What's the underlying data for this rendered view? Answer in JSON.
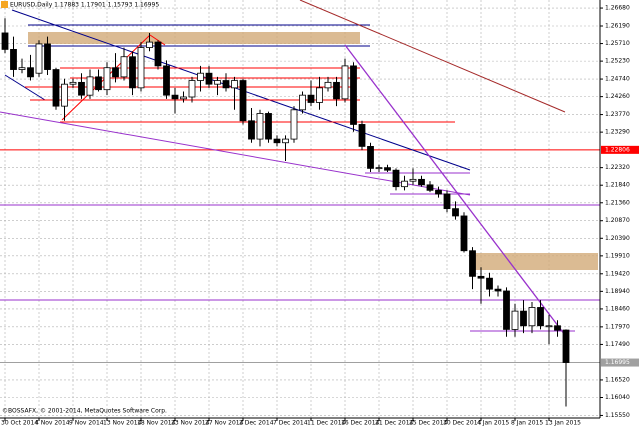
{
  "chart_data": {
    "type": "candlestick",
    "title": "EURUSD,Daily  1.17883 1.17901 1.15793 1.16995",
    "footer": "©BOSSAFX, © 2001-2014, MetaQuotes Software Corp.",
    "categories": [
      "30 Oct 2014",
      null,
      null,
      null,
      "4 Nov 2014",
      null,
      null,
      null,
      "9 Nov 2014",
      null,
      null,
      null,
      "13 Nov 2014",
      null,
      null,
      null,
      "18 Nov 2014",
      null,
      null,
      null,
      "23 Nov 2014",
      null,
      null,
      null,
      "27 Nov 2014",
      null,
      null,
      null,
      "2 Dec 2014",
      null,
      null,
      null,
      "7 Dec 2014",
      null,
      null,
      null,
      "11 Dec 2014",
      null,
      null,
      null,
      "16 Dec 2014",
      null,
      null,
      null,
      "21 Dec 2014",
      null,
      null,
      null,
      "25 Dec 2014",
      null,
      null,
      null,
      "30 Dec 2014",
      null,
      null,
      null,
      "4 Jan 2015",
      null,
      null,
      null,
      "8 Jan 2015",
      null,
      null,
      null,
      "13 Jan 2015",
      null,
      null
    ],
    "open": [
      1.26,
      1.2555,
      1.25,
      1.2505,
      1.249,
      1.257,
      1.25,
      1.24,
      1.246,
      1.2465,
      1.243,
      1.248,
      1.2445,
      1.2505,
      1.248,
      1.2535,
      1.245,
      1.256,
      1.2575,
      1.251,
      1.243,
      1.242,
      1.2425,
      1.247,
      1.249,
      1.246,
      1.247,
      1.245,
      1.247,
      1.236,
      1.231,
      1.238,
      1.231,
      1.23,
      1.231,
      1.239,
      1.243,
      1.241,
      1.245,
      1.2465,
      1.242,
      1.251,
      1.235,
      1.229,
      1.223,
      1.2232,
      1.2225,
      1.218,
      1.2195,
      1.22,
      1.2185,
      1.217,
      1.216,
      1.212,
      1.21,
      1.2005,
      1.1935,
      1.193,
      1.19,
      1.1895,
      1.179,
      1.184,
      1.18,
      1.185,
      1.18,
      1.18,
      1.17883
    ],
    "high": [
      1.264,
      1.259,
      1.253,
      1.254,
      1.258,
      1.259,
      1.2505,
      1.2475,
      1.2475,
      1.249,
      1.25,
      1.25,
      1.252,
      1.2545,
      1.256,
      1.255,
      1.2575,
      1.26,
      1.258,
      1.2525,
      1.245,
      1.244,
      1.248,
      1.251,
      1.251,
      1.248,
      1.249,
      1.248,
      1.2475,
      1.2395,
      1.239,
      1.2385,
      1.232,
      1.232,
      1.24,
      1.244,
      1.247,
      1.248,
      1.248,
      1.248,
      1.253,
      1.252,
      1.236,
      1.23,
      1.224,
      1.224,
      1.223,
      1.221,
      1.223,
      1.221,
      1.2195,
      1.218,
      1.217,
      1.214,
      1.211,
      1.2015,
      1.196,
      1.1945,
      1.191,
      1.1905,
      1.186,
      1.187,
      1.1865,
      1.187,
      1.183,
      1.1815,
      1.17901
    ],
    "low": [
      1.2545,
      1.248,
      1.249,
      1.247,
      1.248,
      1.2485,
      1.239,
      1.236,
      1.245,
      1.242,
      1.242,
      1.244,
      1.243,
      1.2465,
      1.247,
      1.243,
      1.244,
      1.255,
      1.25,
      1.242,
      1.238,
      1.241,
      1.241,
      1.244,
      1.245,
      1.243,
      1.244,
      1.239,
      1.235,
      1.23,
      1.229,
      1.23,
      1.229,
      1.225,
      1.23,
      1.238,
      1.24,
      1.239,
      1.244,
      1.24,
      1.241,
      1.233,
      1.228,
      1.222,
      1.222,
      1.222,
      1.217,
      1.217,
      1.2185,
      1.218,
      1.2165,
      1.215,
      1.211,
      1.209,
      1.2,
      1.19,
      1.186,
      1.188,
      1.188,
      1.177,
      1.177,
      1.178,
      1.178,
      1.179,
      1.175,
      1.177,
      1.15793
    ],
    "close": [
      1.2555,
      1.25,
      1.2505,
      1.248,
      1.257,
      1.25,
      1.24,
      1.246,
      1.2465,
      1.243,
      1.248,
      1.2445,
      1.2505,
      1.248,
      1.2535,
      1.245,
      1.256,
      1.2575,
      1.251,
      1.243,
      1.242,
      1.2425,
      1.247,
      1.249,
      1.246,
      1.247,
      1.245,
      1.247,
      1.236,
      1.231,
      1.238,
      1.231,
      1.23,
      1.231,
      1.239,
      1.243,
      1.241,
      1.245,
      1.2465,
      1.242,
      1.251,
      1.235,
      1.229,
      1.223,
      1.2232,
      1.2225,
      1.218,
      1.2195,
      1.22,
      1.2185,
      1.217,
      1.216,
      1.212,
      1.21,
      1.2005,
      1.1935,
      1.193,
      1.19,
      1.1895,
      1.179,
      1.184,
      1.18,
      1.185,
      1.18,
      1.18,
      1.1788,
      1.16995
    ],
    "up_color": "#ffffff",
    "down_color": "#000000",
    "ylim": [
      1.1548,
      1.269
    ],
    "yticks": [
      {
        "value": 1.2668,
        "label": "1.26680"
      },
      {
        "value": 1.2619,
        "label": "1.26190"
      },
      {
        "value": 1.2571,
        "label": "1.25710"
      },
      {
        "value": 1.2523,
        "label": "1.25230"
      },
      {
        "value": 1.2474,
        "label": "1.24740"
      },
      {
        "value": 1.2426,
        "label": "1.24260"
      },
      {
        "value": 1.2377,
        "label": "1.23770"
      },
      {
        "value": 1.2329,
        "label": "1.23290"
      },
      {
        "value": 1.2232,
        "label": "1.22320"
      },
      {
        "value": 1.2184,
        "label": "1.21840"
      },
      {
        "value": 1.2136,
        "label": "1.21360"
      },
      {
        "value": 1.2087,
        "label": "1.20870"
      },
      {
        "value": 1.2039,
        "label": "1.20390"
      },
      {
        "value": 1.1991,
        "label": "1.19910"
      },
      {
        "value": 1.1942,
        "label": "1.19420"
      },
      {
        "value": 1.1894,
        "label": "1.18940"
      },
      {
        "value": 1.1846,
        "label": "1.18460"
      },
      {
        "value": 1.1797,
        "label": "1.17970"
      },
      {
        "value": 1.1749,
        "label": "1.17490"
      },
      {
        "value": 1.1652,
        "label": "1.16520"
      },
      {
        "value": 1.1604,
        "label": "1.16040"
      },
      {
        "value": 1.1555,
        "label": "1.15550"
      }
    ],
    "price_lines": [
      {
        "value": 1.22806,
        "color": "#ff0000"
      },
      {
        "value": 1.16995,
        "color": "#a0a0a0"
      }
    ],
    "grid": true
  }
}
